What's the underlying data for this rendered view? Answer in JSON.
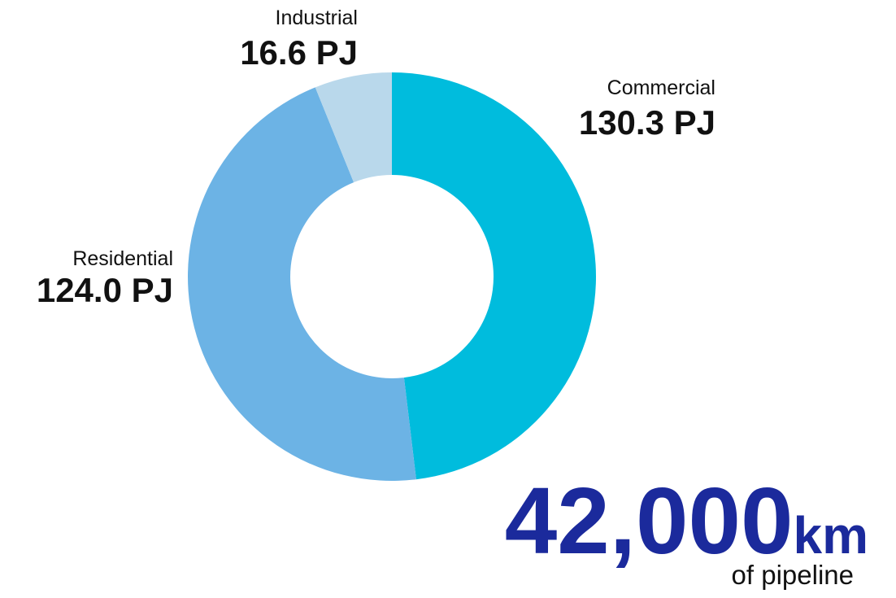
{
  "chart_data": {
    "type": "donut",
    "categories": [
      "Commercial",
      "Residential",
      "Industrial"
    ],
    "values": [
      130.3,
      124.0,
      16.6
    ],
    "value_labels": [
      "130.3 PJ",
      "124.0 PJ",
      "16.6 PJ"
    ],
    "colors": [
      "#00bcdd",
      "#6cb3e5",
      "#b9d8eb"
    ],
    "callout": {
      "number": "42,000",
      "unit": "km",
      "caption": "of pipeline",
      "color": "#1b2a9c"
    }
  }
}
